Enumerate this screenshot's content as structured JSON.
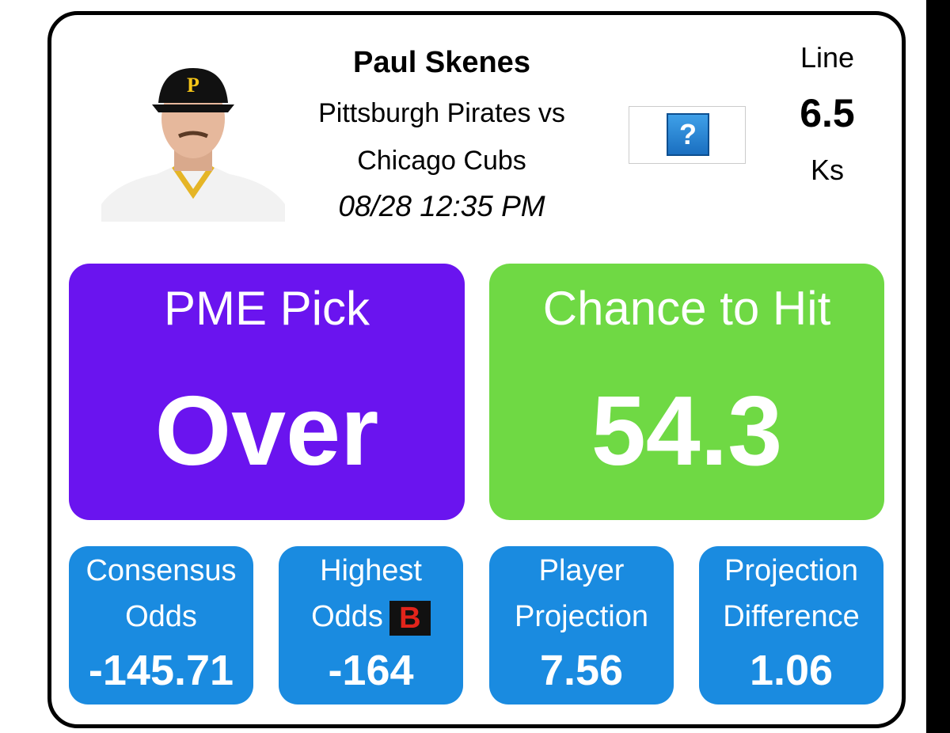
{
  "player": {
    "name": "Paul Skenes",
    "matchup_line1": "Pittsburgh Pirates vs",
    "matchup_line2": "Chicago Cubs",
    "datetime": "08/28 12:35 PM"
  },
  "line": {
    "label": "Line",
    "value": 6.5,
    "unit": "Ks"
  },
  "pick": {
    "label": "PME Pick",
    "value": "Over"
  },
  "chance": {
    "label": "Chance to Hit",
    "value": 54.3
  },
  "stats": [
    {
      "label_line1": "Consensus",
      "label_line2": "Odds",
      "value": -145.71
    },
    {
      "label_line1": "Highest",
      "label_line2": "Odds",
      "value": -164
    },
    {
      "label_line1": "Player",
      "label_line2": "Projection",
      "value": 7.56
    },
    {
      "label_line1": "Projection",
      "label_line2": "Difference",
      "value": 1.06
    }
  ]
}
